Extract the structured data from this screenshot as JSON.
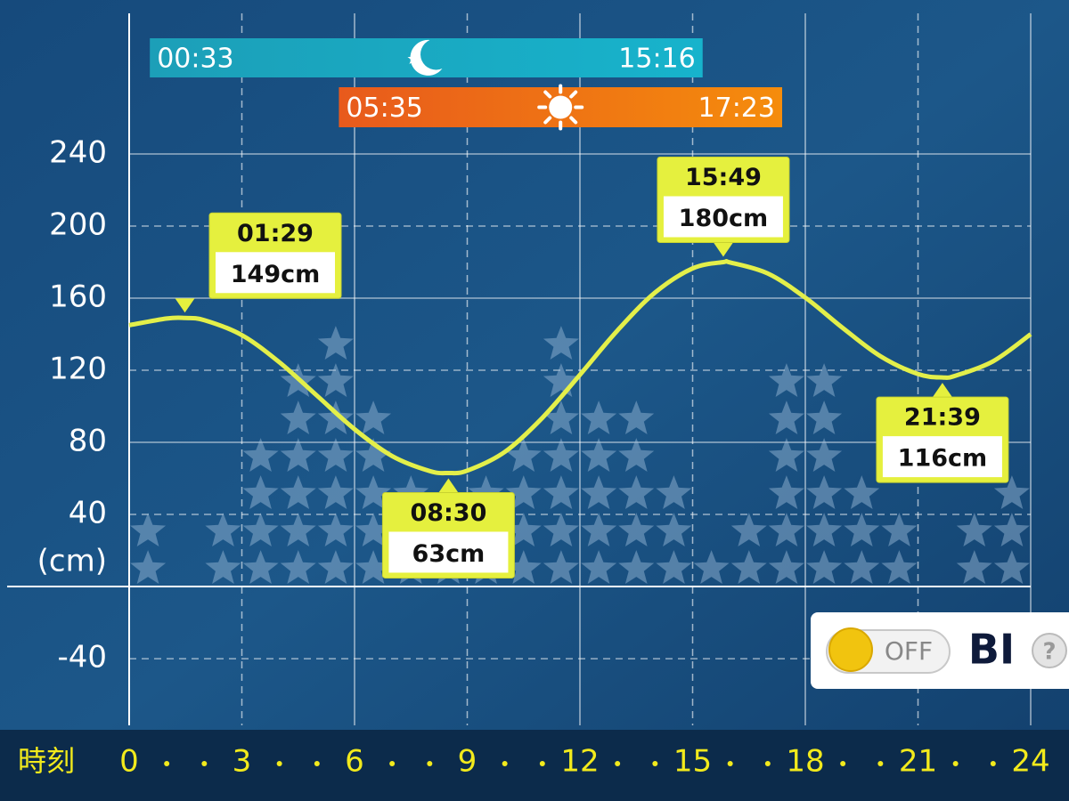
{
  "chart_data": {
    "type": "line",
    "ylabel": "(cm)",
    "xlabel": "時刻",
    "x": [
      0,
      1,
      1.48,
      2,
      3,
      4,
      5,
      6,
      7,
      8,
      8.5,
      9,
      10,
      11,
      12,
      13,
      14,
      15,
      15.82,
      16,
      17,
      18,
      19,
      20,
      21,
      21.65,
      22,
      23,
      24
    ],
    "values": [
      145,
      148.7,
      149,
      147.8,
      139.5,
      124.4,
      105.9,
      87.3,
      72.4,
      64.1,
      63,
      64.3,
      74.7,
      93.6,
      117.5,
      142.1,
      163.1,
      176.5,
      180,
      179.8,
      173.7,
      160.3,
      143.4,
      127.8,
      117.9,
      116,
      117,
      125,
      140
    ],
    "color": "#e3ef4a",
    "xlim": [
      0,
      24
    ],
    "ylim": [
      -77,
      318
    ],
    "xticks": [
      0,
      3,
      6,
      9,
      12,
      15,
      18,
      21,
      24
    ],
    "yticks": [
      -40,
      40,
      80,
      120,
      160,
      200,
      240
    ],
    "grid": true,
    "annotations": [
      {
        "time": "01:29",
        "value": 149,
        "label": "149cm"
      },
      {
        "time": "08:30",
        "value": 63,
        "label": "63cm"
      },
      {
        "time": "15:49",
        "value": 180,
        "label": "180cm"
      },
      {
        "time": "21:39",
        "value": 116,
        "label": "116cm"
      }
    ],
    "star_counts": [
      2,
      0,
      2,
      4,
      6,
      7,
      5,
      3,
      2,
      3,
      4,
      7,
      5,
      5,
      3,
      1,
      2,
      6,
      6,
      3,
      2,
      0,
      2,
      3
    ],
    "moon": {
      "rise": "00:33",
      "set": "15:16"
    },
    "sun": {
      "rise": "05:35",
      "set": "17:23"
    }
  },
  "controls": {
    "toggle": "OFF",
    "mode": "BI",
    "help": "?"
  }
}
